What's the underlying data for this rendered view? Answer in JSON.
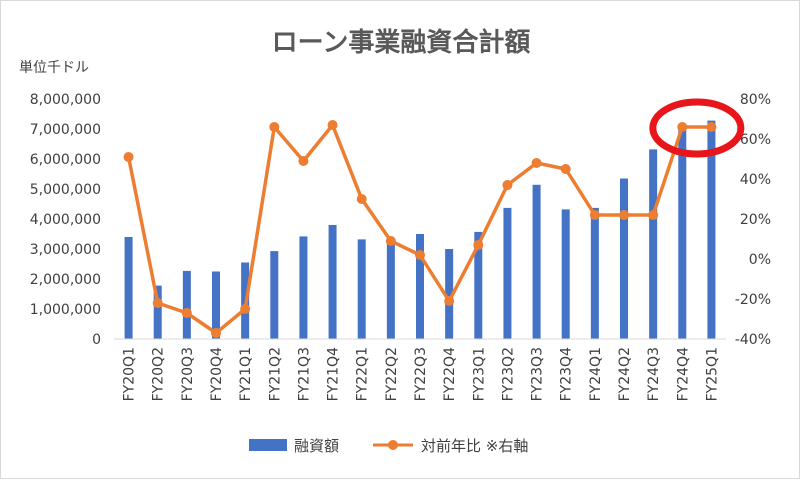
{
  "chart_data": {
    "type": "bar",
    "title": "ローン事業融資合計額",
    "y_unit_label": "単位千ドル",
    "categories": [
      "FY20Q1",
      "FY20Q2",
      "FY20Q3",
      "FY20Q4",
      "FY21Q1",
      "FY21Q2",
      "FY21Q3",
      "FY21Q4",
      "FY22Q1",
      "FY22Q2",
      "FY22Q3",
      "FY22Q4",
      "FY23Q1",
      "FY23Q2",
      "FY23Q3",
      "FY23Q4",
      "FY24Q1",
      "FY24Q2",
      "FY24Q3",
      "FY24Q4",
      "FY25Q1"
    ],
    "series": [
      {
        "name": "融資額",
        "type": "bar",
        "axis": "left",
        "color": "#4472c4",
        "values": [
          3400000,
          1780000,
          2270000,
          2250000,
          2550000,
          2930000,
          3420000,
          3800000,
          3320000,
          3270000,
          3500000,
          3000000,
          3570000,
          4370000,
          5140000,
          4320000,
          4370000,
          5350000,
          6320000,
          7060000,
          7280000
        ]
      },
      {
        "name": "対前年比 ※右軸",
        "type": "line",
        "axis": "right",
        "color": "#ed7d31",
        "values": [
          0.51,
          -0.22,
          -0.27,
          -0.37,
          -0.25,
          0.66,
          0.49,
          0.67,
          0.3,
          0.09,
          0.02,
          -0.21,
          0.07,
          0.37,
          0.48,
          0.45,
          0.22,
          0.22,
          0.22,
          0.66,
          0.66
        ]
      }
    ],
    "y_left": {
      "min": 0,
      "max": 8000000,
      "ticks": [
        "0",
        "1,000,000",
        "2,000,000",
        "3,000,000",
        "4,000,000",
        "5,000,000",
        "6,000,000",
        "7,000,000",
        "8,000,000"
      ]
    },
    "y_right": {
      "min": -0.4,
      "max": 0.8,
      "ticks": [
        "-40%",
        "-20%",
        "0%",
        "20%",
        "40%",
        "60%",
        "80%"
      ]
    },
    "grid": false,
    "legend": "bottom",
    "highlight": {
      "shape": "ellipse",
      "color": "#e8161b",
      "categories": [
        "FY24Q4",
        "FY25Q1"
      ]
    }
  }
}
